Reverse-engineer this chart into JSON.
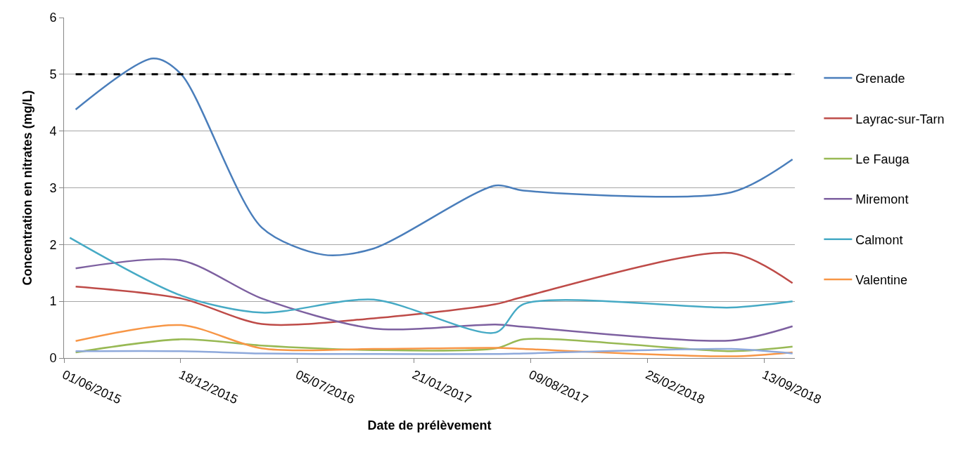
{
  "chart_data": {
    "type": "line",
    "xlabel": "Date de prélèvement",
    "ylabel": "Concentration en nitrates (mg/L)",
    "x": [
      "2015-06-21",
      "2015-12-19",
      "2016-05-05",
      "2016-11-13",
      "2017-06-10",
      "2017-07-28",
      "2018-07-19",
      "2018-11-01"
    ],
    "series": [
      {
        "name": "Grenade",
        "color": "#4a7ebb",
        "x": [
          "2015-06-21",
          "2015-11-01",
          "2015-12-19",
          "2016-05-05",
          "2016-08-19",
          "2016-11-13",
          "2017-06-10",
          "2017-07-28",
          "2018-07-19",
          "2018-11-01"
        ],
        "values": [
          4.38,
          5.28,
          5.0,
          2.3,
          1.82,
          1.93,
          3.04,
          2.95,
          2.92,
          3.5
        ]
      },
      {
        "name": "Layrac-sur-Tarn",
        "color": "#be4b48",
        "values": [
          1.26,
          1.05,
          0.6,
          0.7,
          0.95,
          1.08,
          1.85,
          1.32
        ]
      },
      {
        "name": "Le Fauga",
        "color": "#98b954",
        "values": [
          0.1,
          0.33,
          0.22,
          0.14,
          0.17,
          0.33,
          0.12,
          0.2
        ]
      },
      {
        "name": "Miremont",
        "color": "#7d60a0",
        "values": [
          1.58,
          1.72,
          1.05,
          0.52,
          0.59,
          0.55,
          0.31,
          0.56
        ]
      },
      {
        "name": "Calmont",
        "color": "#46aac5",
        "x": [
          "2015-06-11",
          "2015-12-19",
          "2016-05-05",
          "2016-11-13",
          "2017-06-10",
          "2017-07-28",
          "2018-07-19",
          "2018-11-01"
        ],
        "values": [
          2.12,
          1.1,
          0.8,
          1.03,
          0.45,
          0.95,
          0.89,
          1.0
        ]
      },
      {
        "name": "Valentine",
        "color": "#f79646",
        "values": [
          0.3,
          0.58,
          0.17,
          0.16,
          0.18,
          0.16,
          0.03,
          0.1
        ]
      },
      {
        "color": "#8ea9db",
        "values": [
          0.12,
          0.12,
          0.08,
          0.07,
          0.07,
          0.08,
          0.16,
          0.08
        ]
      }
    ],
    "xlim": [
      "2015-06-01",
      "2018-11-05"
    ],
    "xticks": [
      {
        "value": "2015-06-01",
        "label": "01/06/2015"
      },
      {
        "value": "2015-12-18",
        "label": "18/12/2015"
      },
      {
        "value": "2016-07-05",
        "label": "05/07/2016"
      },
      {
        "value": "2017-01-21",
        "label": "21/01/2017"
      },
      {
        "value": "2017-08-09",
        "label": "09/08/2017"
      },
      {
        "value": "2018-02-25",
        "label": "25/02/2018"
      },
      {
        "value": "2018-09-13",
        "label": "13/09/2018"
      }
    ],
    "ylim": [
      0,
      6
    ],
    "yticks": [
      0,
      1,
      2,
      3,
      4,
      5,
      6
    ],
    "ref_lines": [
      {
        "axis": "y",
        "value": 5,
        "color": "#000000",
        "line_style": "dashed"
      }
    ],
    "grid": "y",
    "legend": "right",
    "marker": "none",
    "line_style": "solid"
  }
}
